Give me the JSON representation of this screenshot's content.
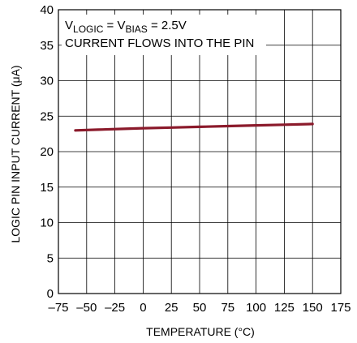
{
  "chart_data": {
    "type": "line",
    "xlabel": "TEMPERATURE (°C)",
    "ylabel": "LOGIC PIN INPUT CURRENT (μA)",
    "xlim": [
      -75,
      175
    ],
    "ylim": [
      0,
      40
    ],
    "x_ticks": [
      -75,
      -50,
      -25,
      0,
      25,
      50,
      75,
      100,
      125,
      150,
      175
    ],
    "x_tick_labels": [
      "–75",
      "–50",
      "–25",
      "0",
      "25",
      "50",
      "75",
      "100",
      "125",
      "150",
      "175"
    ],
    "y_ticks": [
      0,
      5,
      10,
      15,
      20,
      25,
      30,
      35,
      40
    ],
    "y_tick_labels": [
      "0",
      "5",
      "10",
      "15",
      "20",
      "25",
      "30",
      "35",
      "40"
    ],
    "grid": true,
    "series_color": "#8b1a2b",
    "annotation": {
      "line1_parts": [
        "V",
        "LOGIC",
        " = V",
        "BIAS",
        " = 2.5V"
      ],
      "line2": "CURRENT FLOWS INTO THE PIN"
    },
    "series": [
      {
        "x": [
          -60,
          -40,
          -20,
          0,
          25,
          50,
          75,
          100,
          125,
          150
        ],
        "y": [
          23.0,
          23.1,
          23.2,
          23.3,
          23.4,
          23.5,
          23.6,
          23.7,
          23.8,
          23.9
        ]
      }
    ]
  }
}
